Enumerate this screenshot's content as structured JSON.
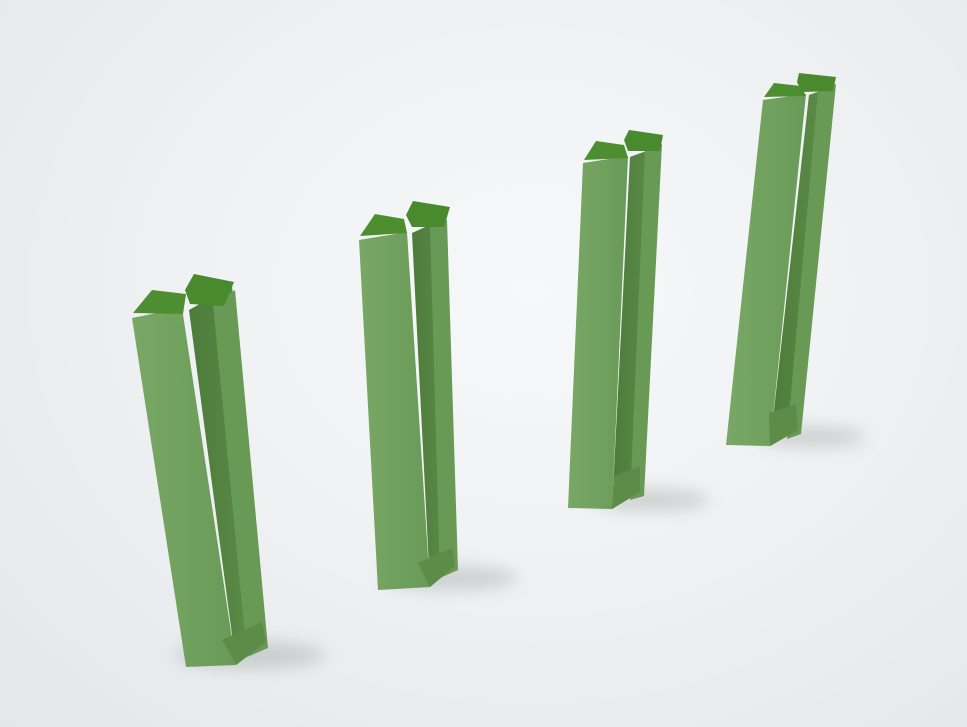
{
  "image": {
    "subject": "bike-rack-posts",
    "post_count": 4,
    "colors": {
      "post_front": "#6f9f5c",
      "post_top": "#4f8f34",
      "post_inner": "#5a8a46",
      "post_shadow_side": "#4e7c3a",
      "floor": "#eceef0",
      "shadow": "#9aa39c"
    }
  }
}
